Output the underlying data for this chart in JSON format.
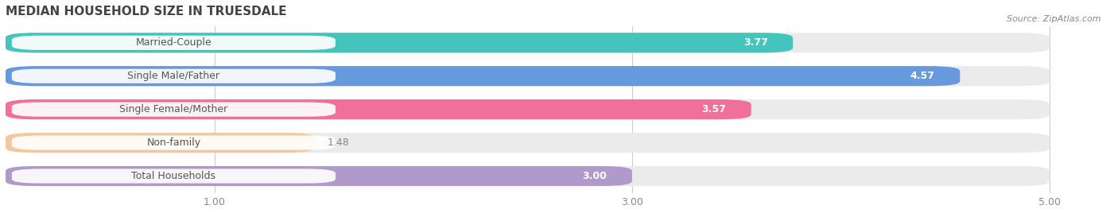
{
  "title": "MEDIAN HOUSEHOLD SIZE IN TRUESDALE",
  "source": "Source: ZipAtlas.com",
  "categories": [
    "Married-Couple",
    "Single Male/Father",
    "Single Female/Mother",
    "Non-family",
    "Total Households"
  ],
  "values": [
    3.77,
    4.57,
    3.57,
    1.48,
    3.0
  ],
  "bar_colors": [
    "#45c4bc",
    "#6699dd",
    "#f0709a",
    "#f5c89a",
    "#b09acc"
  ],
  "bar_bg_colors": [
    "#ebebeb",
    "#ebebeb",
    "#ebebeb",
    "#ebebeb",
    "#ebebeb"
  ],
  "label_text_color": "#555555",
  "value_text_color": "#ffffff",
  "xlim": [
    0,
    5.3
  ],
  "xticks": [
    1.0,
    3.0,
    5.0
  ],
  "xlabel_fontsize": 9,
  "title_fontsize": 11,
  "value_fontsize": 9,
  "label_fontsize": 9,
  "bar_height": 0.6,
  "bg_color": "#ffffff",
  "plot_bg_color": "#ffffff"
}
